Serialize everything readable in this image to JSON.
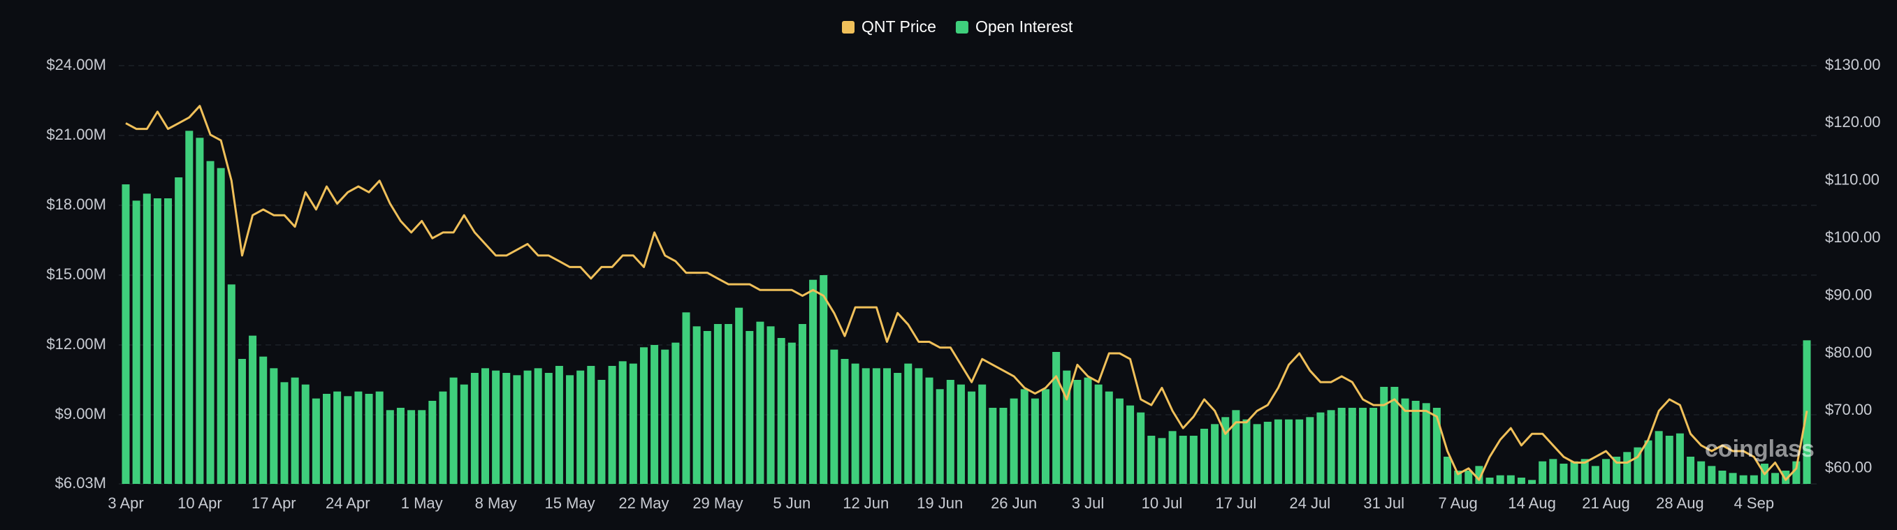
{
  "chart_data": {
    "type": "bar_line",
    "watermark": "coinglass",
    "categories": [
      "3 Apr",
      null,
      null,
      null,
      null,
      null,
      null,
      "10 Apr",
      null,
      null,
      null,
      null,
      null,
      null,
      "17 Apr",
      null,
      null,
      null,
      null,
      null,
      null,
      "24 Apr",
      null,
      null,
      null,
      null,
      null,
      null,
      "1 May",
      null,
      null,
      null,
      null,
      null,
      null,
      "8 May",
      null,
      null,
      null,
      null,
      null,
      null,
      "15 May",
      null,
      null,
      null,
      null,
      null,
      null,
      "22 May",
      null,
      null,
      null,
      null,
      null,
      null,
      "29 May",
      null,
      null,
      null,
      null,
      null,
      null,
      "5 Jun",
      null,
      null,
      null,
      null,
      null,
      null,
      "12 Jun",
      null,
      null,
      null,
      null,
      null,
      null,
      "19 Jun",
      null,
      null,
      null,
      null,
      null,
      null,
      "26 Jun",
      null,
      null,
      null,
      null,
      null,
      null,
      "3 Jul",
      null,
      null,
      null,
      null,
      null,
      null,
      "10 Jul",
      null,
      null,
      null,
      null,
      null,
      null,
      "17 Jul",
      null,
      null,
      null,
      null,
      null,
      null,
      "24 Jul",
      null,
      null,
      null,
      null,
      null,
      null,
      "31 Jul",
      null,
      null,
      null,
      null,
      null,
      null,
      "7 Aug",
      null,
      null,
      null,
      null,
      null,
      null,
      "14 Aug",
      null,
      null,
      null,
      null,
      null,
      null,
      "21 Aug",
      null,
      null,
      null,
      null,
      null,
      null,
      "28 Aug",
      null,
      null,
      null,
      null,
      null,
      null,
      "4 Sep",
      null,
      null,
      null,
      null,
      null
    ],
    "series": [
      {
        "name": "QNT Price",
        "type": "line",
        "axis": "y2",
        "color": "#f0c05a",
        "values": [
          120,
          119,
          119,
          122,
          119,
          120,
          121,
          123,
          118,
          117,
          110,
          97,
          104,
          105,
          104,
          104,
          102,
          108,
          105,
          109,
          106,
          108,
          109,
          108,
          110,
          106,
          103,
          101,
          103,
          100,
          101,
          101,
          104,
          101,
          99,
          97,
          97,
          98,
          99,
          97,
          97,
          96,
          95,
          95,
          93,
          95,
          95,
          97,
          97,
          95,
          101,
          97,
          96,
          94,
          94,
          94,
          93,
          92,
          92,
          92,
          91,
          91,
          91,
          91,
          90,
          91,
          90,
          87,
          83,
          88,
          88,
          88,
          82,
          87,
          85,
          82,
          82,
          81,
          81,
          78,
          75,
          79,
          78,
          77,
          76,
          74,
          73,
          74,
          76,
          72,
          78,
          76,
          75,
          80,
          80,
          79,
          72,
          71,
          74,
          70,
          67,
          69,
          72,
          70,
          66,
          68,
          68,
          70,
          71,
          74,
          78,
          80,
          77,
          75,
          75,
          76,
          75,
          72,
          71,
          71,
          72,
          70,
          70,
          70,
          69,
          63,
          59,
          60,
          58,
          62,
          65,
          67,
          64,
          66,
          66,
          64,
          62,
          61,
          61,
          62,
          63,
          61,
          61,
          62,
          65,
          70,
          72,
          71,
          66,
          64,
          63,
          64,
          63,
          63,
          62,
          59,
          61,
          58,
          60,
          70
        ]
      },
      {
        "name": "Open Interest",
        "type": "bar",
        "color": "#3fcf7c",
        "values": [
          18.9,
          18.2,
          18.5,
          18.3,
          18.3,
          19.2,
          21.2,
          20.9,
          19.9,
          19.6,
          14.6,
          11.4,
          12.4,
          11.5,
          11.0,
          10.4,
          10.6,
          10.3,
          9.7,
          9.9,
          10.0,
          9.8,
          10.0,
          9.9,
          10.0,
          9.2,
          9.3,
          9.2,
          9.2,
          9.6,
          10.0,
          10.6,
          10.3,
          10.8,
          11.0,
          10.9,
          10.8,
          10.7,
          10.9,
          11.0,
          10.8,
          11.1,
          10.7,
          10.9,
          11.1,
          10.5,
          11.1,
          11.3,
          11.2,
          11.9,
          12.0,
          11.8,
          12.1,
          13.4,
          12.8,
          12.6,
          12.9,
          12.9,
          13.6,
          12.6,
          13.0,
          12.8,
          12.3,
          12.1,
          12.9,
          14.8,
          15.0,
          11.8,
          11.4,
          11.2,
          11.0,
          11.0,
          11.0,
          10.8,
          11.2,
          11.0,
          10.6,
          10.1,
          10.5,
          10.3,
          10.0,
          10.3,
          9.3,
          9.3,
          9.7,
          10.1,
          9.7,
          10.1,
          11.7,
          10.9,
          10.5,
          10.6,
          10.3,
          10.0,
          9.7,
          9.4,
          9.1,
          8.1,
          8.0,
          8.3,
          8.1,
          8.1,
          8.4,
          8.6,
          8.9,
          9.2,
          8.8,
          8.6,
          8.7,
          8.8,
          8.8,
          8.8,
          8.9,
          9.1,
          9.2,
          9.3,
          9.3,
          9.3,
          9.3,
          10.2,
          10.2,
          9.7,
          9.6,
          9.5,
          9.3,
          7.2,
          6.6,
          6.6,
          6.8,
          6.3,
          6.4,
          6.4,
          6.3,
          6.2,
          7.0,
          7.1,
          6.9,
          7.0,
          7.1,
          6.8,
          7.1,
          7.2,
          7.4,
          7.6,
          7.9,
          8.3,
          8.1,
          8.2,
          7.2,
          7.0,
          6.8,
          6.6,
          6.5,
          6.4,
          6.4,
          6.9,
          6.5,
          6.6,
          7.0,
          12.2
        ]
      }
    ],
    "ylim": [
      6.03,
      24.0
    ],
    "yticks": [
      {
        "value": 6.03,
        "label": "$6.03M"
      },
      {
        "value": 9,
        "label": "$9.00M"
      },
      {
        "value": 12,
        "label": "$12.00M"
      },
      {
        "value": 15,
        "label": "$15.00M"
      },
      {
        "value": 18,
        "label": "$18.00M"
      },
      {
        "value": 21,
        "label": "$21.00M"
      },
      {
        "value": 24,
        "label": "$24.00M"
      }
    ],
    "y2lim": [
      57.3,
      130
    ],
    "y2ticks": [
      {
        "value": 60,
        "label": "$60.00"
      },
      {
        "value": 70,
        "label": "$70.00"
      },
      {
        "value": 80,
        "label": "$80.00"
      },
      {
        "value": 90,
        "label": "$90.00"
      },
      {
        "value": 100,
        "label": "$100.00"
      },
      {
        "value": 110,
        "label": "$110.00"
      },
      {
        "value": 120,
        "label": "$120.00"
      },
      {
        "value": 130,
        "label": "$130.00"
      }
    ],
    "grid": true,
    "legend": "top"
  }
}
